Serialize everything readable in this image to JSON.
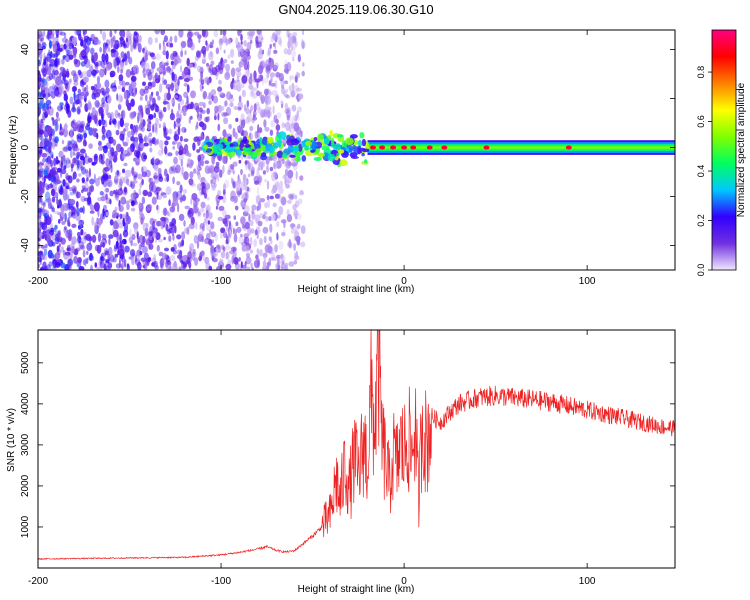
{
  "title": "GN04.2025.119.06.30.G10",
  "chart_data": [
    {
      "type": "heatmap",
      "xlabel": "Height of straight line (km)",
      "ylabel": "Frequency (Hz)",
      "xlim": [
        -200,
        148
      ],
      "ylim": [
        -50,
        48
      ],
      "xticks": [
        -200,
        -100,
        0,
        100
      ],
      "yticks": [
        -40,
        -20,
        0,
        20,
        40
      ],
      "colorbar": {
        "label": "Normalized spectral amplitude",
        "range": [
          0,
          0.97
        ],
        "ticks": [
          0.0,
          0.2,
          0.4,
          0.6,
          0.8
        ],
        "colormap": [
          "#f0e8ff",
          "#7030e0",
          "#3000ff",
          "#00c8ff",
          "#00ff60",
          "#80ff00",
          "#ffff00",
          "#ff8000",
          "#ff0000",
          "#ff0080"
        ]
      },
      "features": [
        {
          "name": "noise region",
          "x_range": [
            -200,
            -55
          ],
          "y_range": [
            -50,
            48
          ],
          "amplitude": 0.15
        },
        {
          "name": "scattered blobs",
          "x_range": [
            -110,
            -20
          ],
          "y_range": [
            -12,
            8
          ],
          "amplitude": 0.35
        },
        {
          "name": "steady tone",
          "x_range": [
            -20,
            148
          ],
          "y_center": 0,
          "y_halfwidth": 3,
          "amplitude": 0.45
        },
        {
          "name": "peak spots",
          "x_values": [
            -17,
            -12,
            -6,
            0,
            5,
            14,
            22,
            45,
            90
          ],
          "y": 0,
          "amplitude": 0.9
        }
      ],
      "grid": false
    },
    {
      "type": "line",
      "xlabel": "Height of straight line (km)",
      "ylabel": "SNR (10 * v/v)",
      "xlim": [
        -200,
        148
      ],
      "ylim": [
        0,
        5800
      ],
      "xticks": [
        -200,
        -100,
        0,
        100
      ],
      "yticks": [
        1000,
        2000,
        3000,
        4000,
        5000
      ],
      "color": "#ee2222",
      "series": [
        {
          "x": [
            -200,
            -180,
            -160,
            -140,
            -120,
            -100,
            -90,
            -80,
            -75,
            -70,
            -65,
            -60,
            -55,
            -50,
            -45,
            -40,
            -37,
            -35,
            -32,
            -30,
            -27,
            -25,
            -22,
            -20,
            -18,
            -16,
            -14,
            -12,
            -10,
            -8,
            -6,
            -4,
            -2,
            0,
            2,
            4,
            6,
            8,
            10,
            12,
            15,
            20,
            25,
            30,
            40,
            50,
            60,
            70,
            80,
            90,
            100,
            110,
            120,
            130,
            140,
            148
          ],
          "y": [
            220,
            230,
            240,
            250,
            260,
            320,
            380,
            460,
            520,
            430,
            390,
            420,
            600,
            780,
            1000,
            1300,
            2200,
            1600,
            2600,
            1900,
            2700,
            2200,
            3100,
            2500,
            4200,
            3400,
            5200,
            3000,
            2600,
            2000,
            2800,
            2500,
            3000,
            2800,
            3300,
            2700,
            3600,
            1600,
            3800,
            3000,
            3700,
            3550,
            3800,
            4000,
            4150,
            4200,
            4150,
            4100,
            4050,
            3950,
            3850,
            3750,
            3650,
            3550,
            3450,
            3400
          ]
        }
      ],
      "grid": false
    }
  ]
}
